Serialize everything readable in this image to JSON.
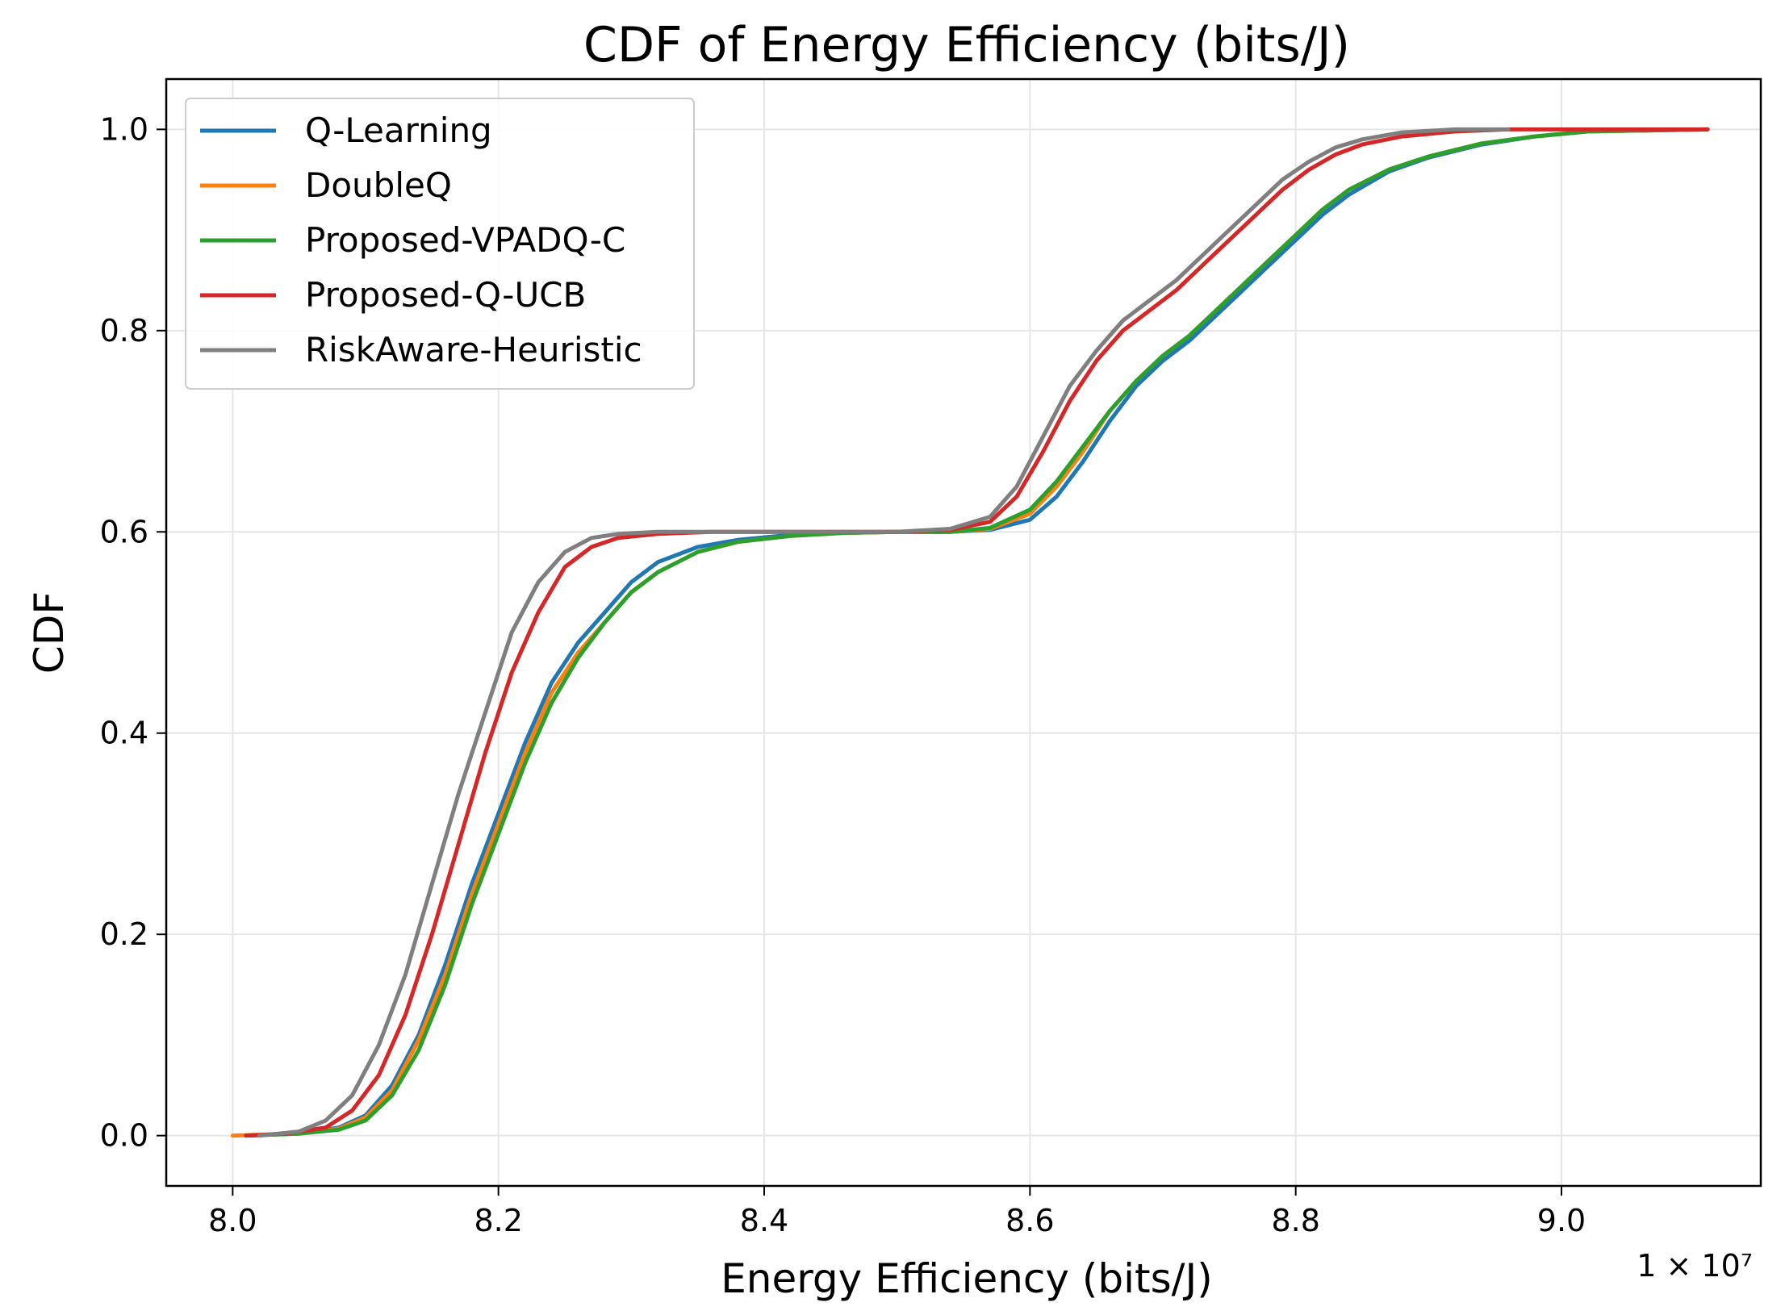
{
  "chart_data": {
    "type": "line",
    "title": "CDF of Energy Efficiency (bits/J)",
    "xlabel": "Energy Efficiency (bits/J)",
    "ylabel": "CDF",
    "x_multiplier_label": "1 × 10⁷",
    "xlim": [
      7.95,
      9.15
    ],
    "ylim": [
      -0.05,
      1.05
    ],
    "xticks": [
      "8.0",
      "8.2",
      "8.4",
      "8.6",
      "8.8",
      "9.0"
    ],
    "yticks": [
      "0.0",
      "0.2",
      "0.4",
      "0.6",
      "0.8",
      "1.0"
    ],
    "grid": true,
    "legend_position": "top-left",
    "series": [
      {
        "name": "Q-Learning",
        "color": "#1f77b4",
        "x": [
          8.01,
          8.05,
          8.08,
          8.1,
          8.12,
          8.14,
          8.16,
          8.18,
          8.2,
          8.22,
          8.24,
          8.26,
          8.28,
          8.3,
          8.32,
          8.35,
          8.38,
          8.42,
          8.46,
          8.5,
          8.54,
          8.57,
          8.6,
          8.62,
          8.64,
          8.66,
          8.68,
          8.7,
          8.72,
          8.74,
          8.76,
          8.78,
          8.8,
          8.82,
          8.84,
          8.87,
          8.9,
          8.94,
          8.98,
          9.02,
          9.11
        ],
        "y": [
          0.0,
          0.002,
          0.008,
          0.02,
          0.05,
          0.1,
          0.17,
          0.25,
          0.32,
          0.39,
          0.45,
          0.49,
          0.52,
          0.55,
          0.57,
          0.585,
          0.592,
          0.597,
          0.599,
          0.6,
          0.6,
          0.602,
          0.612,
          0.635,
          0.67,
          0.71,
          0.745,
          0.77,
          0.79,
          0.815,
          0.84,
          0.865,
          0.89,
          0.915,
          0.935,
          0.958,
          0.972,
          0.985,
          0.993,
          0.998,
          1.0
        ]
      },
      {
        "name": "DoubleQ",
        "color": "#ff7f0e",
        "x": [
          8.0,
          8.05,
          8.08,
          8.1,
          8.12,
          8.14,
          8.16,
          8.18,
          8.2,
          8.22,
          8.24,
          8.26,
          8.28,
          8.3,
          8.32,
          8.35,
          8.38,
          8.42,
          8.46,
          8.5,
          8.54,
          8.57,
          8.6,
          8.62,
          8.64,
          8.66,
          8.68,
          8.7,
          8.72,
          8.74,
          8.76,
          8.78,
          8.8,
          8.82,
          8.84,
          8.87,
          8.9,
          8.94,
          8.98,
          9.02,
          9.11
        ],
        "y": [
          0.0,
          0.002,
          0.007,
          0.018,
          0.045,
          0.095,
          0.16,
          0.24,
          0.31,
          0.38,
          0.44,
          0.48,
          0.51,
          0.54,
          0.56,
          0.58,
          0.59,
          0.596,
          0.599,
          0.6,
          0.6,
          0.603,
          0.618,
          0.645,
          0.68,
          0.72,
          0.75,
          0.775,
          0.795,
          0.82,
          0.845,
          0.87,
          0.895,
          0.92,
          0.94,
          0.96,
          0.973,
          0.986,
          0.993,
          0.998,
          1.0
        ]
      },
      {
        "name": "Proposed-VPADQ-C",
        "color": "#2ca02c",
        "x": [
          8.01,
          8.05,
          8.08,
          8.1,
          8.12,
          8.14,
          8.16,
          8.18,
          8.2,
          8.22,
          8.24,
          8.26,
          8.28,
          8.3,
          8.32,
          8.35,
          8.38,
          8.42,
          8.46,
          8.5,
          8.54,
          8.57,
          8.6,
          8.62,
          8.64,
          8.66,
          8.68,
          8.7,
          8.72,
          8.74,
          8.76,
          8.78,
          8.8,
          8.82,
          8.84,
          8.87,
          8.9,
          8.94,
          8.98,
          9.02,
          9.11
        ],
        "y": [
          0.0,
          0.002,
          0.006,
          0.015,
          0.04,
          0.085,
          0.15,
          0.23,
          0.3,
          0.37,
          0.43,
          0.475,
          0.51,
          0.54,
          0.56,
          0.58,
          0.59,
          0.596,
          0.599,
          0.6,
          0.6,
          0.604,
          0.622,
          0.65,
          0.685,
          0.72,
          0.75,
          0.775,
          0.795,
          0.82,
          0.845,
          0.87,
          0.895,
          0.92,
          0.94,
          0.96,
          0.973,
          0.986,
          0.993,
          0.998,
          1.0
        ]
      },
      {
        "name": "Proposed-Q-UCB",
        "color": "#d62728",
        "x": [
          8.01,
          8.04,
          8.07,
          8.09,
          8.11,
          8.13,
          8.15,
          8.17,
          8.19,
          8.21,
          8.23,
          8.25,
          8.27,
          8.29,
          8.32,
          8.36,
          8.4,
          8.45,
          8.5,
          8.54,
          8.57,
          8.59,
          8.61,
          8.63,
          8.65,
          8.67,
          8.69,
          8.71,
          8.73,
          8.75,
          8.77,
          8.79,
          8.81,
          8.83,
          8.85,
          8.88,
          8.92,
          8.96,
          9.11
        ],
        "y": [
          0.0,
          0.002,
          0.008,
          0.025,
          0.06,
          0.12,
          0.2,
          0.29,
          0.38,
          0.46,
          0.52,
          0.565,
          0.585,
          0.594,
          0.598,
          0.6,
          0.6,
          0.6,
          0.6,
          0.602,
          0.61,
          0.635,
          0.68,
          0.73,
          0.77,
          0.8,
          0.82,
          0.84,
          0.865,
          0.89,
          0.915,
          0.94,
          0.96,
          0.975,
          0.985,
          0.993,
          0.998,
          1.0,
          1.0
        ]
      },
      {
        "name": "RiskAware-Heuristic",
        "color": "#7f7f7f",
        "x": [
          8.02,
          8.05,
          8.07,
          8.09,
          8.11,
          8.13,
          8.15,
          8.17,
          8.19,
          8.21,
          8.23,
          8.25,
          8.27,
          8.29,
          8.32,
          8.36,
          8.4,
          8.45,
          8.5,
          8.54,
          8.57,
          8.59,
          8.61,
          8.63,
          8.65,
          8.67,
          8.69,
          8.71,
          8.73,
          8.75,
          8.77,
          8.79,
          8.81,
          8.83,
          8.85,
          8.88,
          8.92,
          8.96
        ],
        "y": [
          0.0,
          0.004,
          0.015,
          0.04,
          0.09,
          0.16,
          0.25,
          0.34,
          0.42,
          0.5,
          0.55,
          0.58,
          0.594,
          0.598,
          0.6,
          0.6,
          0.6,
          0.6,
          0.6,
          0.603,
          0.615,
          0.645,
          0.695,
          0.745,
          0.78,
          0.81,
          0.83,
          0.85,
          0.875,
          0.9,
          0.925,
          0.95,
          0.968,
          0.982,
          0.99,
          0.997,
          1.0,
          1.0
        ]
      }
    ]
  }
}
